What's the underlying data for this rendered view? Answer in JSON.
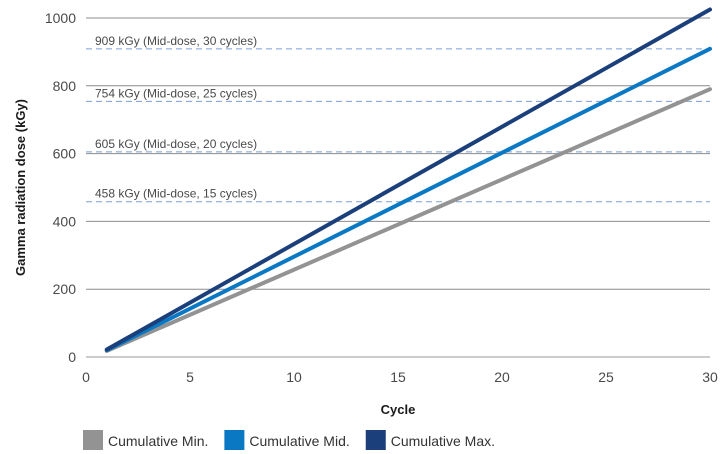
{
  "chart_data": {
    "type": "line",
    "xlabel": "Cycle",
    "ylabel": "Gamma radiation dose (kGy)",
    "xlim": [
      0,
      30
    ],
    "ylim": [
      0,
      1000
    ],
    "x_ticks": [
      0,
      5,
      10,
      15,
      20,
      25,
      30
    ],
    "y_ticks": [
      0,
      200,
      400,
      600,
      800,
      1000
    ],
    "grid": "horizontal",
    "legend_position": "bottom",
    "series": [
      {
        "name": "Cumulative Min.",
        "color": "#939393",
        "x": [
          1,
          30
        ],
        "y": [
          18,
          790
        ]
      },
      {
        "name": "Cumulative Mid.",
        "color": "#0a78c2",
        "x": [
          1,
          30
        ],
        "y": [
          20,
          909
        ]
      },
      {
        "name": "Cumulative Max.",
        "color": "#1a3f7a",
        "x": [
          1,
          30
        ],
        "y": [
          22,
          1025
        ]
      }
    ],
    "reference_lines": [
      {
        "y": 909,
        "label": "909 kGy (Mid-dose, 30 cycles)"
      },
      {
        "y": 754,
        "label": "754 kGy (Mid-dose, 25 cycles)"
      },
      {
        "y": 605,
        "label": "605 kGy (Mid-dose, 20 cycles)"
      },
      {
        "y": 458,
        "label": "458 kGy (Mid-dose, 15 cycles)"
      }
    ],
    "reference_line_color": "#7a9fd6"
  }
}
